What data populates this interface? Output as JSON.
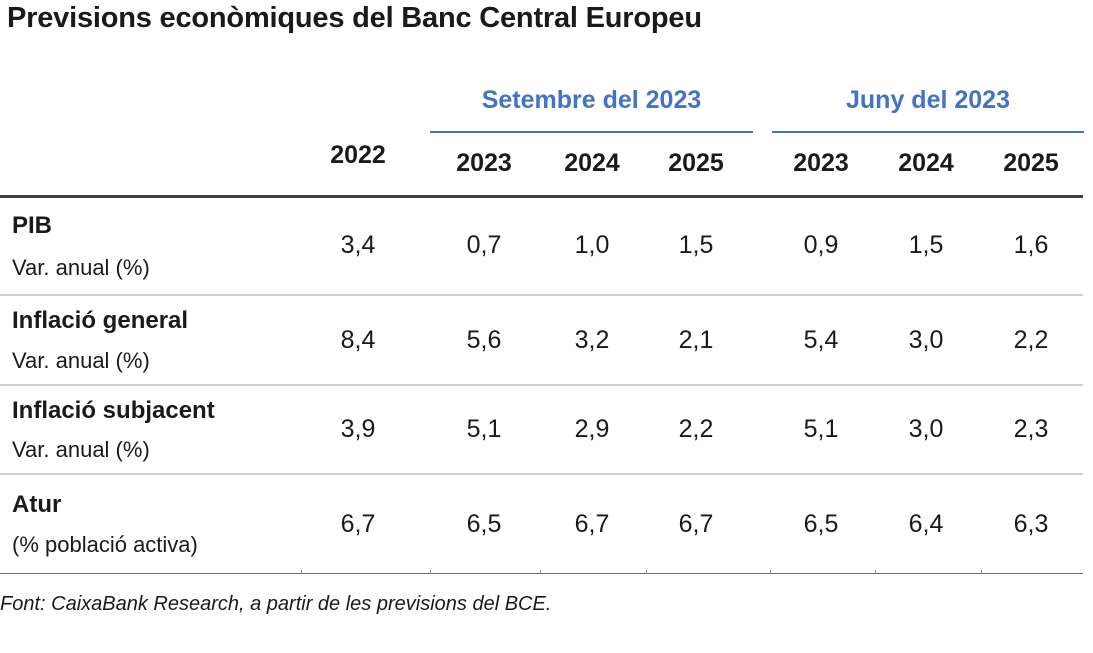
{
  "title": "Previsions econòmiques del Banc Central Europeu",
  "accent_color": "#4472c4",
  "groups": [
    "Setembre del 2023",
    "Juny del 2023"
  ],
  "columns": [
    "2022",
    "2023",
    "2024",
    "2025",
    "2023",
    "2024",
    "2025"
  ],
  "rows": [
    {
      "label": "PIB",
      "sub": "Var. anual (%)",
      "values": [
        "3,4",
        "0,7",
        "1,0",
        "1,5",
        "0,9",
        "1,5",
        "1,6"
      ]
    },
    {
      "label": "Inflació general",
      "sub": "Var. anual (%)",
      "values": [
        "8,4",
        "5,6",
        "3,2",
        "2,1",
        "5,4",
        "3,0",
        "2,2"
      ]
    },
    {
      "label": "Inflació subjacent",
      "sub": "Var. anual (%)",
      "values": [
        "3,9",
        "5,1",
        "2,9",
        "2,2",
        "5,1",
        "3,0",
        "2,3"
      ]
    },
    {
      "label": "Atur",
      "sub": "(% població activa)",
      "values": [
        "6,7",
        "6,5",
        "6,7",
        "6,7",
        "6,5",
        "6,4",
        "6,3"
      ]
    }
  ],
  "footnote": "Font: CaixaBank Research, a partir de les previsions del BCE."
}
